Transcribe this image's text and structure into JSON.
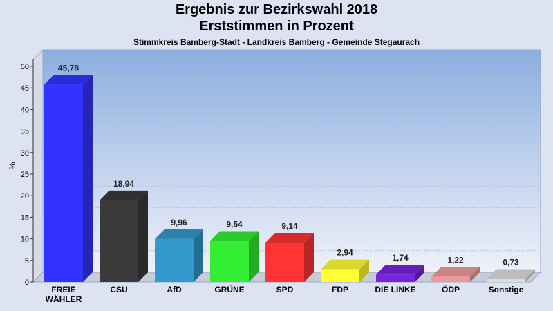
{
  "chart_data": {
    "type": "bar",
    "title": "Ergebnis zur Bezirkswahl 2018",
    "subtitle": "Erststimmen in Prozent",
    "subtitle2": "Stimmkreis Bamberg-Stadt - Landkreis Bamberg - Gemeinde Stegaurach",
    "ylabel": "%",
    "xlabel": "",
    "ylim": [
      0,
      50
    ],
    "yticks": [
      0,
      5,
      10,
      15,
      20,
      25,
      30,
      35,
      40,
      45,
      50
    ],
    "categories": [
      "FREIE WÄHLER",
      "CSU",
      "AfD",
      "GRÜNE",
      "SPD",
      "FDP",
      "DIE LINKE",
      "ÖDP",
      "Sonstige"
    ],
    "values": [
      45.78,
      18.94,
      9.96,
      9.54,
      9.14,
      2.94,
      1.74,
      1.22,
      0.73
    ],
    "value_labels": [
      "45,78",
      "18,94",
      "9,96",
      "9,54",
      "9,14",
      "2,94",
      "1,74",
      "1,22",
      "0,73"
    ],
    "colors": [
      "#3333ff",
      "#3a3a3a",
      "#3399cc",
      "#33ee33",
      "#ff3333",
      "#ffff33",
      "#7722dd",
      "#ee9999",
      "#dddddd"
    ],
    "grid": true,
    "legend": "none"
  }
}
